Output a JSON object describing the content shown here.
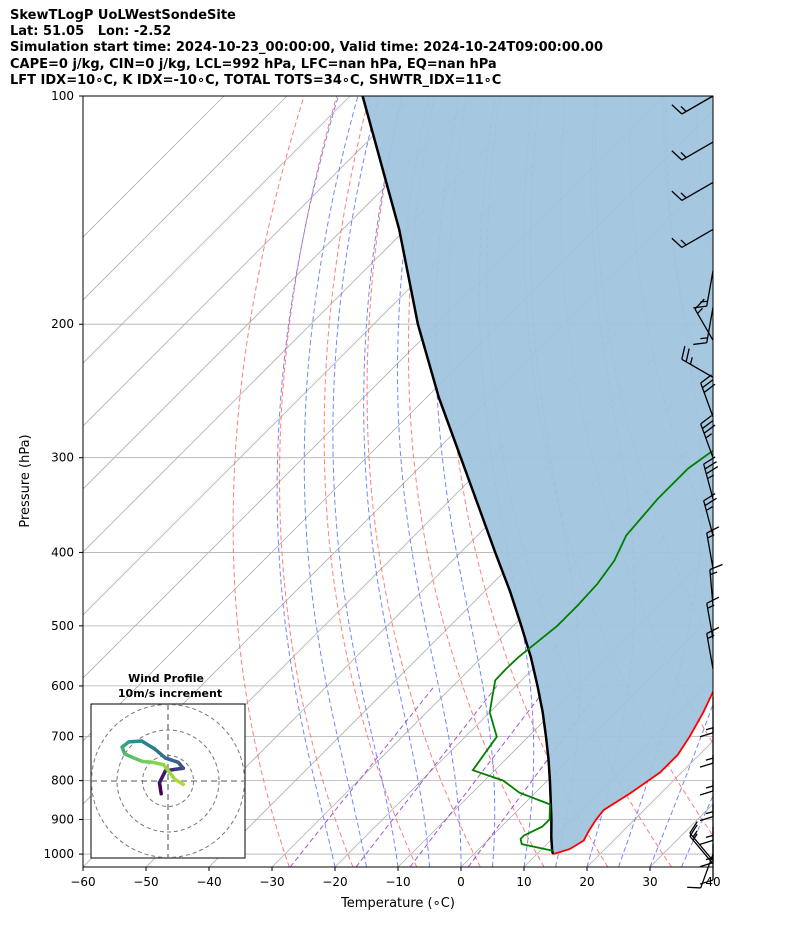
{
  "header": {
    "lines": [
      "SkewTLogP UoLWestSondeSite",
      "Lat: 51.05   Lon: -2.52",
      "Simulation start time: 2024-10-23_00:00:00, Valid time: 2024-10-24T09:00:00.00",
      "CAPE=0 j/kg, CIN=0 j/kg, LCL=992 hPa, LFC=nan hPa, EQ=nan hPa",
      "LFT IDX=10∘C, K IDX=-10∘C, TOTAL TOTS=34∘C, SHWTR_IDX=11∘C"
    ]
  },
  "chart_data": {
    "type": "skewt",
    "xlabel": "Temperature (∘C)",
    "ylabel": "Pressure (hPa)",
    "xlim": [
      -60,
      40
    ],
    "ylim": [
      1040,
      100
    ],
    "x_ticks": [
      "−60",
      "−50",
      "−40",
      "−30",
      "−20",
      "−10",
      "0",
      "10",
      "20",
      "30",
      "40"
    ],
    "x_tick_values": [
      -60,
      -50,
      -40,
      -30,
      -20,
      -10,
      0,
      10,
      20,
      30,
      40
    ],
    "y_ticks": [
      "100",
      "200",
      "300",
      "400",
      "500",
      "600",
      "700",
      "800",
      "900",
      "1000"
    ],
    "y_tick_values": [
      100,
      200,
      300,
      400,
      500,
      600,
      700,
      800,
      900,
      1000
    ],
    "scale": "log-pressure, skewed temperature",
    "grid": true,
    "colors": {
      "temperature": "#ff0000",
      "dewpoint": "#008000",
      "parcel": "#000000",
      "shade": "#a0c4de",
      "dry_adiabats": "#ff6666",
      "moist_adiabats": "#6677ff",
      "mixing_ratio": "#9944cc"
    },
    "series": [
      {
        "key": "temperature",
        "points": [
          [
            1000,
            12.6
          ],
          [
            985,
            14.4
          ],
          [
            960,
            15.3
          ],
          [
            930,
            14.5
          ],
          [
            900,
            13.9
          ],
          [
            875,
            13.6
          ],
          [
            830,
            15.2
          ],
          [
            780,
            16.6
          ],
          [
            740,
            16.6
          ],
          [
            700,
            15.6
          ],
          [
            650,
            13.9
          ],
          [
            600,
            11.7
          ],
          [
            560,
            9.6
          ],
          [
            520,
            6.8
          ],
          [
            480,
            3.0
          ],
          [
            450,
            0.0
          ],
          [
            420,
            -2.5
          ],
          [
            390,
            -5.0
          ],
          [
            360,
            -7.8
          ],
          [
            330,
            -10.5
          ],
          [
            300,
            -13.0
          ],
          [
            275,
            -15.3
          ],
          [
            250,
            -18.0
          ],
          [
            230,
            -20.8
          ],
          [
            210,
            -22.8
          ],
          [
            195,
            -25.5
          ],
          [
            185,
            -25.5
          ],
          [
            175,
            -25.0
          ],
          [
            165,
            -24.0
          ],
          [
            150,
            -20.8
          ],
          [
            135,
            -20.0
          ],
          [
            120,
            -18.5
          ],
          [
            108,
            -16.8
          ],
          [
            100,
            -15.5
          ]
        ]
      },
      {
        "key": "dewpoint",
        "points": [
          [
            990,
            12.0
          ],
          [
            970,
            6.0
          ],
          [
            955,
            5.0
          ],
          [
            945,
            5.0
          ],
          [
            920,
            6.5
          ],
          [
            900,
            6.5
          ],
          [
            860,
            4.2
          ],
          [
            830,
            -2.5
          ],
          [
            800,
            -7.0
          ],
          [
            775,
            -13.5
          ],
          [
            700,
            -15.0
          ],
          [
            650,
            -20.0
          ],
          [
            590,
            -24.2
          ],
          [
            570,
            -24.3
          ],
          [
            550,
            -24.2
          ],
          [
            520,
            -23.5
          ],
          [
            500,
            -23.0
          ],
          [
            470,
            -23.0
          ],
          [
            440,
            -23.3
          ],
          [
            410,
            -24.3
          ],
          [
            380,
            -26.4
          ],
          [
            340,
            -27.2
          ],
          [
            310,
            -27.2
          ],
          [
            295,
            -26.2
          ],
          [
            275,
            -23.0
          ],
          [
            260,
            -23.0
          ],
          [
            245,
            -24.0
          ],
          [
            230,
            -29.2
          ],
          [
            205,
            -28.3
          ],
          [
            195,
            -30.5
          ],
          [
            180,
            -31.5
          ],
          [
            165,
            -32.7
          ],
          [
            150,
            -33.5
          ],
          [
            140,
            -35.5
          ],
          [
            135,
            -35.0
          ],
          [
            125,
            -36.2
          ],
          [
            110,
            -35.5
          ],
          [
            100,
            -33.5
          ]
        ]
      },
      {
        "key": "parcel",
        "points": [
          [
            1000,
            12.6
          ],
          [
            992,
            12.0
          ],
          [
            950,
            9.6
          ],
          [
            900,
            6.8
          ],
          [
            850,
            3.7
          ],
          [
            800,
            0.4
          ],
          [
            750,
            -3.2
          ],
          [
            700,
            -7.2
          ],
          [
            650,
            -11.6
          ],
          [
            600,
            -16.6
          ],
          [
            550,
            -22.2
          ],
          [
            500,
            -28.7
          ],
          [
            450,
            -36.0
          ],
          [
            400,
            -44.5
          ],
          [
            350,
            -54.0
          ],
          [
            300,
            -65.0
          ],
          [
            250,
            -78.0
          ],
          [
            200,
            -93.0
          ],
          [
            150,
            -111.0
          ],
          [
            100,
            -138.0
          ]
        ]
      }
    ],
    "wind_barbs_knots": [
      {
        "p": 100,
        "speed": 15,
        "dir": 240
      },
      {
        "p": 115,
        "speed": 15,
        "dir": 240
      },
      {
        "p": 130,
        "speed": 15,
        "dir": 240
      },
      {
        "p": 150,
        "speed": 15,
        "dir": 240
      },
      {
        "p": 170,
        "speed": 15,
        "dir": 190
      },
      {
        "p": 190,
        "speed": 15,
        "dir": 190
      },
      {
        "p": 210,
        "speed": 15,
        "dir": 330
      },
      {
        "p": 235,
        "speed": 25,
        "dir": 300
      },
      {
        "p": 265,
        "speed": 30,
        "dir": 340
      },
      {
        "p": 300,
        "speed": 35,
        "dir": 340
      },
      {
        "p": 340,
        "speed": 35,
        "dir": 345
      },
      {
        "p": 380,
        "speed": 25,
        "dir": 345
      },
      {
        "p": 420,
        "speed": 15,
        "dir": 350
      },
      {
        "p": 470,
        "speed": 15,
        "dir": 355
      },
      {
        "p": 520,
        "speed": 15,
        "dir": 350
      },
      {
        "p": 570,
        "speed": 15,
        "dir": 350
      },
      {
        "p": 620,
        "speed": 15,
        "dir": 180
      },
      {
        "p": 680,
        "speed": 15,
        "dir": 180
      },
      {
        "p": 740,
        "speed": 15,
        "dir": 180
      },
      {
        "p": 800,
        "speed": 15,
        "dir": 180
      },
      {
        "p": 860,
        "speed": 15,
        "dir": 180
      },
      {
        "p": 920,
        "speed": 15,
        "dir": 180
      },
      {
        "p": 970,
        "speed": 10,
        "dir": 180
      },
      {
        "p": 1000,
        "speed": 10,
        "dir": 200
      },
      {
        "p": 1020,
        "speed": 15,
        "dir": 320
      },
      {
        "p": 1030,
        "speed": 15,
        "dir": 320
      }
    ],
    "hodograph": {
      "title": "Wind Profile",
      "subtitle": "10m/s increment",
      "points": [
        [
          -0.8,
          -1.5
        ],
        [
          -1.0,
          -0.2
        ],
        [
          -0.3,
          1.2
        ],
        [
          1.0,
          1.4
        ],
        [
          1.8,
          1.5
        ],
        [
          1.2,
          2.2
        ],
        [
          -0.3,
          2.7
        ],
        [
          -1.6,
          3.8
        ],
        [
          -3.1,
          4.7
        ],
        [
          -4.6,
          4.6
        ],
        [
          -5.4,
          4.0
        ],
        [
          -5.1,
          3.2
        ],
        [
          -4.0,
          2.7
        ],
        [
          -3.0,
          2.3
        ],
        [
          -1.8,
          2.2
        ],
        [
          -0.5,
          1.9
        ],
        [
          0.8,
          0.2
        ],
        [
          1.8,
          -0.4
        ]
      ]
    }
  }
}
